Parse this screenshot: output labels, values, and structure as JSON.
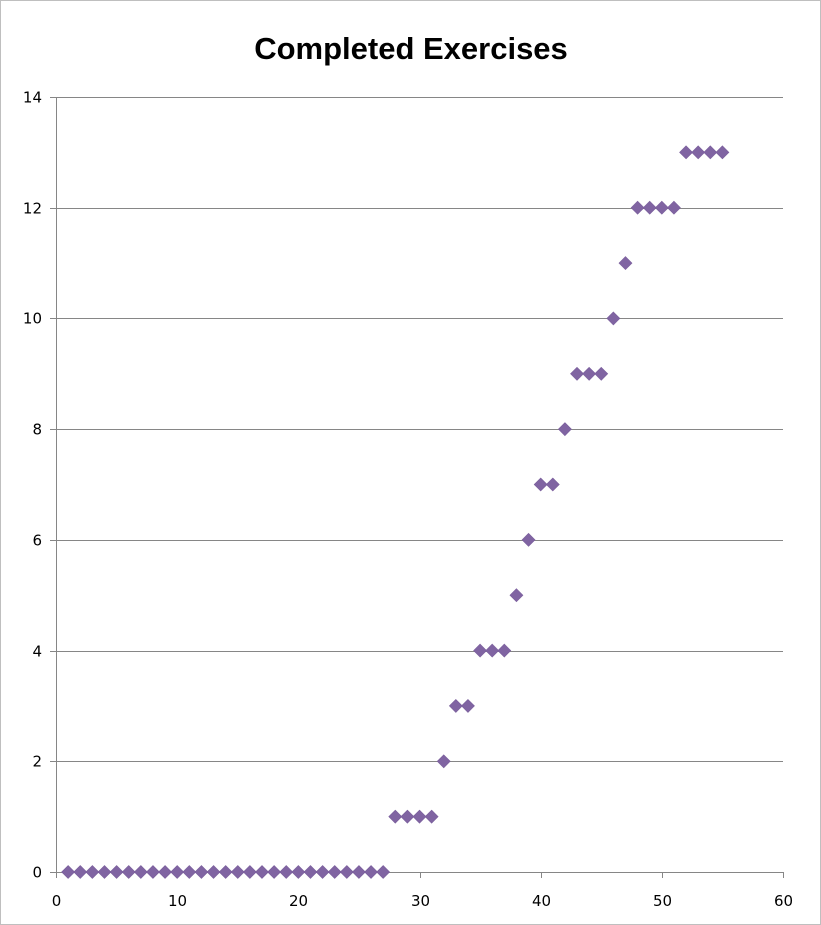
{
  "chart_data": {
    "type": "scatter",
    "title": "Completed Exercises",
    "xlabel": "",
    "ylabel": "",
    "xlim": [
      0,
      60
    ],
    "ylim": [
      0,
      14
    ],
    "x_ticks": [
      0,
      10,
      20,
      30,
      40,
      50,
      60
    ],
    "y_ticks": [
      0,
      2,
      4,
      6,
      8,
      10,
      12,
      14
    ],
    "grid": "horizontal",
    "legend": "none",
    "marker": "diamond",
    "series": [
      {
        "color": "#8064a2",
        "points": [
          [
            1,
            0
          ],
          [
            2,
            0
          ],
          [
            3,
            0
          ],
          [
            4,
            0
          ],
          [
            5,
            0
          ],
          [
            6,
            0
          ],
          [
            7,
            0
          ],
          [
            8,
            0
          ],
          [
            9,
            0
          ],
          [
            10,
            0
          ],
          [
            11,
            0
          ],
          [
            12,
            0
          ],
          [
            13,
            0
          ],
          [
            14,
            0
          ],
          [
            15,
            0
          ],
          [
            16,
            0
          ],
          [
            17,
            0
          ],
          [
            18,
            0
          ],
          [
            19,
            0
          ],
          [
            20,
            0
          ],
          [
            21,
            0
          ],
          [
            22,
            0
          ],
          [
            23,
            0
          ],
          [
            24,
            0
          ],
          [
            25,
            0
          ],
          [
            26,
            0
          ],
          [
            27,
            0
          ],
          [
            28,
            1
          ],
          [
            29,
            1
          ],
          [
            30,
            1
          ],
          [
            31,
            1
          ],
          [
            32,
            2
          ],
          [
            33,
            3
          ],
          [
            34,
            3
          ],
          [
            35,
            4
          ],
          [
            36,
            4
          ],
          [
            37,
            4
          ],
          [
            38,
            5
          ],
          [
            39,
            6
          ],
          [
            40,
            7
          ],
          [
            41,
            7
          ],
          [
            42,
            8
          ],
          [
            43,
            9
          ],
          [
            44,
            9
          ],
          [
            45,
            9
          ],
          [
            46,
            10
          ],
          [
            47,
            11
          ],
          [
            48,
            12
          ],
          [
            49,
            12
          ],
          [
            50,
            12
          ],
          [
            51,
            12
          ],
          [
            52,
            13
          ],
          [
            53,
            13
          ],
          [
            54,
            13
          ],
          [
            55,
            13
          ]
        ]
      }
    ]
  }
}
